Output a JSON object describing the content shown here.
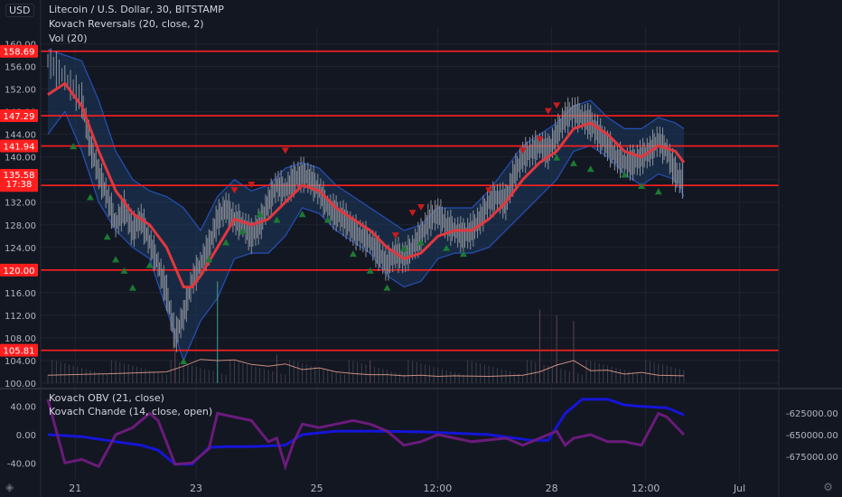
{
  "header": {
    "currency": "USD",
    "symbol_line": "Litecoin / U.S. Dollar, 30, BITSTAMP",
    "indicator_1": "Kovach Reversals (20, close, 2)",
    "indicator_2": "Vol (20)"
  },
  "lower_pane": {
    "indicator_1": "Kovach OBV (21, close)",
    "indicator_2": "Kovach Chande (14, close, open)"
  },
  "colors": {
    "background": "#131722",
    "grid": "#1f2430",
    "candles": "#8c9099",
    "band_fill": "#1e3a5f",
    "band_edge": "#2a5bd7",
    "basis": "#e0383e",
    "hline": "#ff1f1f",
    "volume_line": "#e8a090",
    "obv": "#1515d8",
    "chande": "#6a1b7a",
    "marker_up": "#1b7a34",
    "marker_down": "#c91c1c"
  },
  "chart_data": [
    {
      "type": "line",
      "title": "Litecoin / U.S. Dollar, 30, BITSTAMP",
      "x_ticks": [
        "21",
        "23",
        "25",
        "12:00",
        "28",
        "12:00",
        "Jul"
      ],
      "ylim": [
        100,
        162
      ],
      "y_ticks": [
        "100.00",
        "104.00",
        "108.00",
        "112.00",
        "116.00",
        "120.00",
        "124.00",
        "128.00",
        "132.00",
        "136.00",
        "140.00",
        "144.00",
        "148.00",
        "152.00",
        "156.00",
        "160.00"
      ],
      "horizontal_lines": [
        158.69,
        147.29,
        141.94,
        134.96,
        120.0,
        105.81
      ],
      "h_labels": [
        "158.69",
        "147.29",
        "141.94",
        "134.96",
        "120.00",
        "105.81"
      ],
      "last_price_label": "135.58",
      "countdown_label": "17:38",
      "price_series": [
        [
          0,
          157
        ],
        [
          2,
          154
        ],
        [
          4,
          150
        ],
        [
          5,
          142
        ],
        [
          6,
          137
        ],
        [
          7,
          133
        ],
        [
          8,
          128
        ],
        [
          9,
          131
        ],
        [
          10,
          127
        ],
        [
          11,
          129
        ],
        [
          12,
          125
        ],
        [
          13,
          121
        ],
        [
          14,
          116
        ],
        [
          15,
          108
        ],
        [
          16,
          112
        ],
        [
          17,
          118
        ],
        [
          18,
          121
        ],
        [
          19,
          124
        ],
        [
          20,
          129
        ],
        [
          21,
          131
        ],
        [
          22,
          129
        ],
        [
          23,
          128
        ],
        [
          24,
          126
        ],
        [
          25,
          128
        ],
        [
          26,
          132
        ],
        [
          27,
          135
        ],
        [
          28,
          134
        ],
        [
          29,
          136
        ],
        [
          30,
          137
        ],
        [
          31,
          136
        ],
        [
          32,
          134
        ],
        [
          33,
          131
        ],
        [
          34,
          130
        ],
        [
          35,
          129
        ],
        [
          36,
          127
        ],
        [
          37,
          126
        ],
        [
          38,
          125
        ],
        [
          39,
          123
        ],
        [
          40,
          121
        ],
        [
          41,
          123
        ],
        [
          42,
          122
        ],
        [
          43,
          124
        ],
        [
          44,
          126
        ],
        [
          45,
          129
        ],
        [
          46,
          130
        ],
        [
          47,
          128
        ],
        [
          48,
          127
        ],
        [
          49,
          126
        ],
        [
          50,
          127
        ],
        [
          51,
          129
        ],
        [
          52,
          132
        ],
        [
          53,
          133
        ],
        [
          54,
          132
        ],
        [
          55,
          137
        ],
        [
          56,
          140
        ],
        [
          57,
          141
        ],
        [
          58,
          142
        ],
        [
          59,
          141
        ],
        [
          60,
          144
        ],
        [
          61,
          147
        ],
        [
          62,
          148
        ],
        [
          63,
          147
        ],
        [
          64,
          146
        ],
        [
          65,
          144
        ],
        [
          66,
          142
        ],
        [
          67,
          140
        ],
        [
          68,
          139
        ],
        [
          69,
          139
        ],
        [
          70,
          140
        ],
        [
          71,
          141
        ],
        [
          72,
          143
        ],
        [
          73,
          141
        ],
        [
          74,
          137
        ],
        [
          75,
          135.58
        ]
      ],
      "basis_series": [
        [
          0,
          151
        ],
        [
          2,
          153
        ],
        [
          4,
          149
        ],
        [
          6,
          141
        ],
        [
          8,
          134
        ],
        [
          10,
          130
        ],
        [
          12,
          128
        ],
        [
          14,
          124
        ],
        [
          16,
          117
        ],
        [
          17,
          117
        ],
        [
          18,
          119
        ],
        [
          20,
          124
        ],
        [
          22,
          129
        ],
        [
          24,
          128
        ],
        [
          26,
          129
        ],
        [
          28,
          132
        ],
        [
          30,
          135
        ],
        [
          32,
          134
        ],
        [
          34,
          131
        ],
        [
          36,
          129
        ],
        [
          38,
          127
        ],
        [
          40,
          124
        ],
        [
          42,
          122
        ],
        [
          44,
          123
        ],
        [
          46,
          126
        ],
        [
          48,
          127
        ],
        [
          50,
          127
        ],
        [
          52,
          129
        ],
        [
          54,
          132
        ],
        [
          56,
          136
        ],
        [
          58,
          139
        ],
        [
          60,
          141
        ],
        [
          62,
          145
        ],
        [
          64,
          146
        ],
        [
          66,
          144
        ],
        [
          68,
          141
        ],
        [
          70,
          140
        ],
        [
          72,
          142
        ],
        [
          74,
          141
        ],
        [
          75,
          139
        ]
      ],
      "band_upper": [
        [
          0,
          159
        ],
        [
          2,
          158
        ],
        [
          4,
          157
        ],
        [
          6,
          150
        ],
        [
          8,
          141
        ],
        [
          10,
          136
        ],
        [
          12,
          134
        ],
        [
          14,
          133
        ],
        [
          16,
          131
        ],
        [
          18,
          127
        ],
        [
          20,
          133
        ],
        [
          22,
          136
        ],
        [
          24,
          134
        ],
        [
          26,
          135
        ],
        [
          28,
          138
        ],
        [
          30,
          139
        ],
        [
          32,
          138
        ],
        [
          34,
          135
        ],
        [
          36,
          133
        ],
        [
          38,
          131
        ],
        [
          40,
          129
        ],
        [
          42,
          127
        ],
        [
          44,
          128
        ],
        [
          46,
          131
        ],
        [
          48,
          131
        ],
        [
          50,
          131
        ],
        [
          52,
          134
        ],
        [
          54,
          138
        ],
        [
          56,
          142
        ],
        [
          58,
          144
        ],
        [
          60,
          146
        ],
        [
          62,
          149
        ],
        [
          64,
          150
        ],
        [
          66,
          147
        ],
        [
          68,
          145
        ],
        [
          70,
          145
        ],
        [
          72,
          147
        ],
        [
          74,
          146
        ],
        [
          75,
          145
        ]
      ],
      "band_lower": [
        [
          0,
          144
        ],
        [
          2,
          148
        ],
        [
          4,
          141
        ],
        [
          6,
          132
        ],
        [
          8,
          127
        ],
        [
          10,
          124
        ],
        [
          12,
          122
        ],
        [
          14,
          113
        ],
        [
          16,
          104
        ],
        [
          18,
          111
        ],
        [
          20,
          115
        ],
        [
          22,
          122
        ],
        [
          24,
          123
        ],
        [
          26,
          123
        ],
        [
          28,
          126
        ],
        [
          30,
          131
        ],
        [
          32,
          130
        ],
        [
          34,
          127
        ],
        [
          36,
          125
        ],
        [
          38,
          123
        ],
        [
          40,
          119
        ],
        [
          42,
          117
        ],
        [
          44,
          118
        ],
        [
          46,
          122
        ],
        [
          48,
          123
        ],
        [
          50,
          123
        ],
        [
          52,
          124
        ],
        [
          54,
          127
        ],
        [
          56,
          130
        ],
        [
          58,
          133
        ],
        [
          60,
          136
        ],
        [
          62,
          141
        ],
        [
          64,
          142
        ],
        [
          66,
          140
        ],
        [
          68,
          137
        ],
        [
          70,
          135
        ],
        [
          72,
          137
        ],
        [
          74,
          136
        ],
        [
          75,
          133
        ]
      ],
      "markers_up": [
        [
          3,
          142
        ],
        [
          5,
          133
        ],
        [
          7,
          126
        ],
        [
          8,
          122
        ],
        [
          9,
          120
        ],
        [
          10,
          117
        ],
        [
          12,
          121
        ],
        [
          16,
          104
        ],
        [
          19,
          122
        ],
        [
          21,
          125
        ],
        [
          23,
          127
        ],
        [
          25,
          130
        ],
        [
          27,
          129
        ],
        [
          30,
          130
        ],
        [
          33,
          129
        ],
        [
          36,
          123
        ],
        [
          38,
          120
        ],
        [
          40,
          117
        ],
        [
          42,
          124
        ],
        [
          44,
          125
        ],
        [
          47,
          124
        ],
        [
          49,
          123
        ],
        [
          60,
          140
        ],
        [
          62,
          139
        ],
        [
          64,
          138
        ],
        [
          68,
          137
        ],
        [
          70,
          135
        ],
        [
          72,
          134
        ]
      ],
      "markers_down": [
        [
          22,
          134
        ],
        [
          24,
          135
        ],
        [
          28,
          141
        ],
        [
          41,
          126
        ],
        [
          43,
          130
        ],
        [
          44,
          131
        ],
        [
          52,
          134
        ],
        [
          56,
          141
        ],
        [
          58,
          143
        ],
        [
          59,
          148
        ],
        [
          60,
          149
        ]
      ],
      "volume_series": [
        [
          0,
          101.4
        ],
        [
          8,
          101.7
        ],
        [
          14,
          102
        ],
        [
          16,
          103
        ],
        [
          18,
          104.2
        ],
        [
          20,
          104
        ],
        [
          22,
          104.1
        ],
        [
          24,
          103.3
        ],
        [
          26,
          103
        ],
        [
          28,
          103.4
        ],
        [
          30,
          102.4
        ],
        [
          32,
          102.7
        ],
        [
          34,
          102
        ],
        [
          36,
          101.7
        ],
        [
          38,
          101.5
        ],
        [
          40,
          101.5
        ],
        [
          42,
          101.3
        ],
        [
          44,
          101.4
        ],
        [
          46,
          101.2
        ],
        [
          48,
          101.3
        ],
        [
          52,
          101.2
        ],
        [
          56,
          101.4
        ],
        [
          58,
          102
        ],
        [
          60,
          103.2
        ],
        [
          62,
          104
        ],
        [
          64,
          102.2
        ],
        [
          66,
          102.3
        ],
        [
          68,
          101.6
        ],
        [
          70,
          101.9
        ],
        [
          72,
          101.4
        ],
        [
          75,
          101.3
        ]
      ],
      "volume_spikes": [
        [
          15,
          106
        ],
        [
          20,
          118
        ],
        [
          27,
          105
        ],
        [
          38,
          104
        ],
        [
          58,
          113
        ],
        [
          60,
          112
        ],
        [
          62,
          111
        ]
      ]
    },
    {
      "type": "line",
      "title": "Kovach OBV (21, close) / Kovach Chande (14, close, open)",
      "x_ticks": [
        "21",
        "23",
        "25",
        "12:00",
        "28",
        "12:00",
        "Jul"
      ],
      "left_ylim": [
        -55,
        55
      ],
      "left_ticks": [
        "40.00",
        "0.00",
        "-40.00"
      ],
      "right_ticks": [
        "-625000.00",
        "-650000.00",
        "-675000.00"
      ],
      "series": [
        {
          "name": "Kovach OBV (21, close)",
          "values": [
            [
              0,
              0
            ],
            [
              4,
              -3
            ],
            [
              8,
              -10
            ],
            [
              11,
              -15
            ],
            [
              13,
              -22
            ],
            [
              15,
              -42
            ],
            [
              17,
              -42
            ],
            [
              19,
              -18
            ],
            [
              21,
              -17
            ],
            [
              24,
              -17
            ],
            [
              28,
              -15
            ],
            [
              30,
              0
            ],
            [
              34,
              5
            ],
            [
              38,
              5
            ],
            [
              44,
              4
            ],
            [
              52,
              0
            ],
            [
              57,
              -8
            ],
            [
              59,
              -8
            ],
            [
              61,
              30
            ],
            [
              63,
              50
            ],
            [
              66,
              50
            ],
            [
              68,
              42
            ],
            [
              70,
              40
            ],
            [
              73,
              38
            ],
            [
              75,
              28
            ]
          ]
        },
        {
          "name": "Kovach Chande (14, close, open)",
          "values": [
            [
              0,
              50
            ],
            [
              2,
              -40
            ],
            [
              4,
              -35
            ],
            [
              6,
              -45
            ],
            [
              8,
              0
            ],
            [
              10,
              10
            ],
            [
              12,
              30
            ],
            [
              13,
              20
            ],
            [
              15,
              -42
            ],
            [
              17,
              -40
            ],
            [
              19,
              -20
            ],
            [
              20,
              30
            ],
            [
              22,
              25
            ],
            [
              24,
              20
            ],
            [
              26,
              -10
            ],
            [
              27,
              -5
            ],
            [
              28,
              -45
            ],
            [
              29,
              -10
            ],
            [
              30,
              15
            ],
            [
              32,
              10
            ],
            [
              36,
              20
            ],
            [
              38,
              15
            ],
            [
              40,
              5
            ],
            [
              42,
              -15
            ],
            [
              44,
              -10
            ],
            [
              46,
              0
            ],
            [
              50,
              -10
            ],
            [
              54,
              -5
            ],
            [
              56,
              -15
            ],
            [
              58,
              -5
            ],
            [
              60,
              5
            ],
            [
              61,
              -15
            ],
            [
              62,
              -5
            ],
            [
              64,
              0
            ],
            [
              66,
              -10
            ],
            [
              68,
              -10
            ],
            [
              70,
              -15
            ],
            [
              72,
              30
            ],
            [
              73,
              25
            ],
            [
              75,
              0
            ]
          ]
        }
      ]
    }
  ]
}
